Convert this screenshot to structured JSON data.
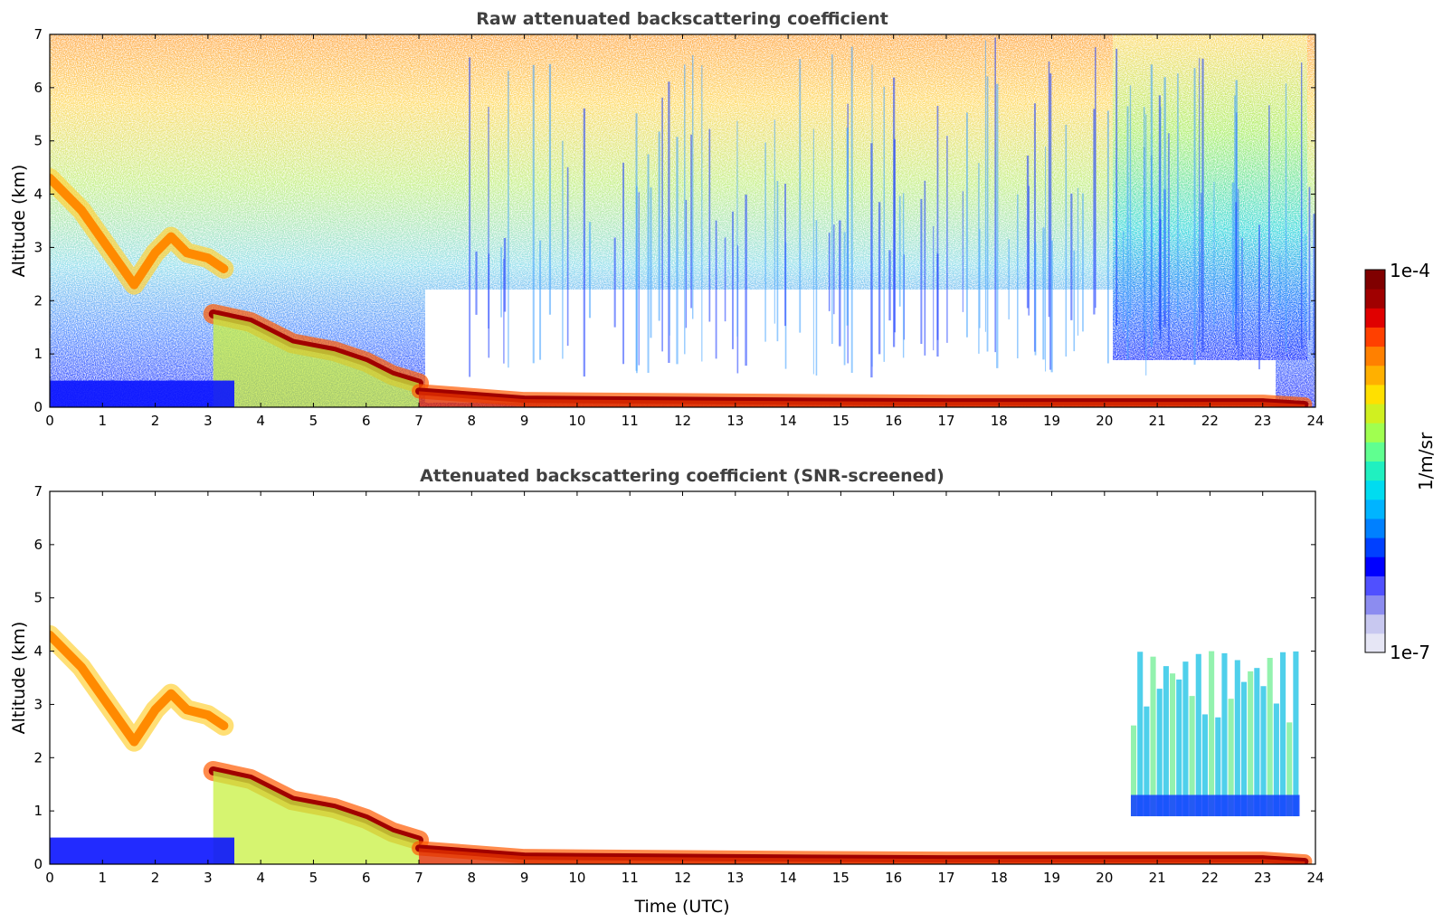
{
  "chart_data": [
    {
      "type": "heatmap",
      "title": "Raw attenuated backscattering coefficient",
      "xlabel": "",
      "ylabel": "Altitude (km)",
      "xlim": [
        0,
        24
      ],
      "ylim": [
        0,
        7
      ],
      "x_ticks": [
        "0",
        "1",
        "2",
        "3",
        "4",
        "5",
        "6",
        "7",
        "8",
        "9",
        "10",
        "11",
        "12",
        "13",
        "14",
        "15",
        "16",
        "17",
        "18",
        "19",
        "20",
        "21",
        "22",
        "23",
        "24"
      ],
      "y_ticks": [
        "0",
        "1",
        "2",
        "3",
        "4",
        "5",
        "6",
        "7"
      ],
      "features": [
        {
          "feature": "descending-aerosol-layer",
          "path": [
            [
              0.0,
              4.3
            ],
            [
              0.6,
              3.7
            ],
            [
              1.1,
              3.0
            ],
            [
              1.6,
              2.3
            ],
            [
              2.0,
              2.9
            ],
            [
              2.3,
              3.2
            ],
            [
              2.6,
              2.9
            ],
            [
              3.0,
              2.8
            ],
            [
              3.3,
              2.6
            ]
          ],
          "level": "high"
        },
        {
          "feature": "elevated-layer",
          "path": [
            [
              3.1,
              1.75
            ],
            [
              3.8,
              1.6
            ],
            [
              4.6,
              1.2
            ],
            [
              5.4,
              1.05
            ],
            [
              6.0,
              0.85
            ],
            [
              6.5,
              0.6
            ],
            [
              7.0,
              0.45
            ]
          ],
          "level": "very-high"
        },
        {
          "feature": "boundary-layer",
          "path": [
            [
              7.0,
              0.3
            ],
            [
              9.0,
              0.15
            ],
            [
              13.0,
              0.12
            ],
            [
              17.0,
              0.1
            ],
            [
              21.0,
              0.1
            ],
            [
              23.0,
              0.1
            ],
            [
              23.8,
              0.05
            ]
          ],
          "level": "very-high"
        }
      ]
    },
    {
      "type": "heatmap",
      "title": "Attenuated backscattering coefficient (SNR-screened)",
      "xlabel": "Time (UTC)",
      "ylabel": "Altitude (km)",
      "xlim": [
        0,
        24
      ],
      "ylim": [
        0,
        7
      ],
      "x_ticks": [
        "0",
        "1",
        "2",
        "3",
        "4",
        "5",
        "6",
        "7",
        "8",
        "9",
        "10",
        "11",
        "12",
        "13",
        "14",
        "15",
        "16",
        "17",
        "18",
        "19",
        "20",
        "21",
        "22",
        "23",
        "24"
      ],
      "y_ticks": [
        "0",
        "1",
        "2",
        "3",
        "4",
        "5",
        "6",
        "7"
      ],
      "features": [
        {
          "feature": "descending-aerosol-layer",
          "path": [
            [
              0.0,
              4.3
            ],
            [
              0.6,
              3.7
            ],
            [
              1.1,
              3.0
            ],
            [
              1.6,
              2.3
            ],
            [
              2.0,
              2.9
            ],
            [
              2.3,
              3.2
            ],
            [
              2.6,
              2.9
            ],
            [
              3.0,
              2.8
            ],
            [
              3.3,
              2.6
            ]
          ],
          "level": "high"
        },
        {
          "feature": "elevated-layer",
          "path": [
            [
              3.1,
              1.75
            ],
            [
              3.8,
              1.6
            ],
            [
              4.6,
              1.2
            ],
            [
              5.4,
              1.05
            ],
            [
              6.0,
              0.85
            ],
            [
              6.5,
              0.6
            ],
            [
              7.0,
              0.45
            ]
          ],
          "level": "very-high"
        },
        {
          "feature": "boundary-layer",
          "path": [
            [
              7.0,
              0.3
            ],
            [
              9.0,
              0.15
            ],
            [
              13.0,
              0.12
            ],
            [
              17.0,
              0.1
            ],
            [
              21.0,
              0.1
            ],
            [
              23.0,
              0.1
            ],
            [
              23.8,
              0.05
            ]
          ],
          "level": "very-high"
        },
        {
          "feature": "evening-aerosol-region",
          "x_range": [
            20.5,
            23.7
          ],
          "alt_range": [
            0.9,
            4.0
          ],
          "level": "medium"
        }
      ]
    }
  ],
  "colorbar": {
    "max_label": "1e-4",
    "min_label": "1e-7",
    "unit_label": "1/m/sr",
    "scale": "log",
    "colors": [
      "#e6e6f5",
      "#c8c8f0",
      "#8c8cf0",
      "#5050ff",
      "#0000ff",
      "#0040ff",
      "#0080ff",
      "#00b4ff",
      "#00dcf0",
      "#20f0c0",
      "#60ff90",
      "#a0ff50",
      "#d0f020",
      "#ffe000",
      "#ffb000",
      "#ff8000",
      "#ff4000",
      "#e00000",
      "#a00000",
      "#800000"
    ]
  }
}
